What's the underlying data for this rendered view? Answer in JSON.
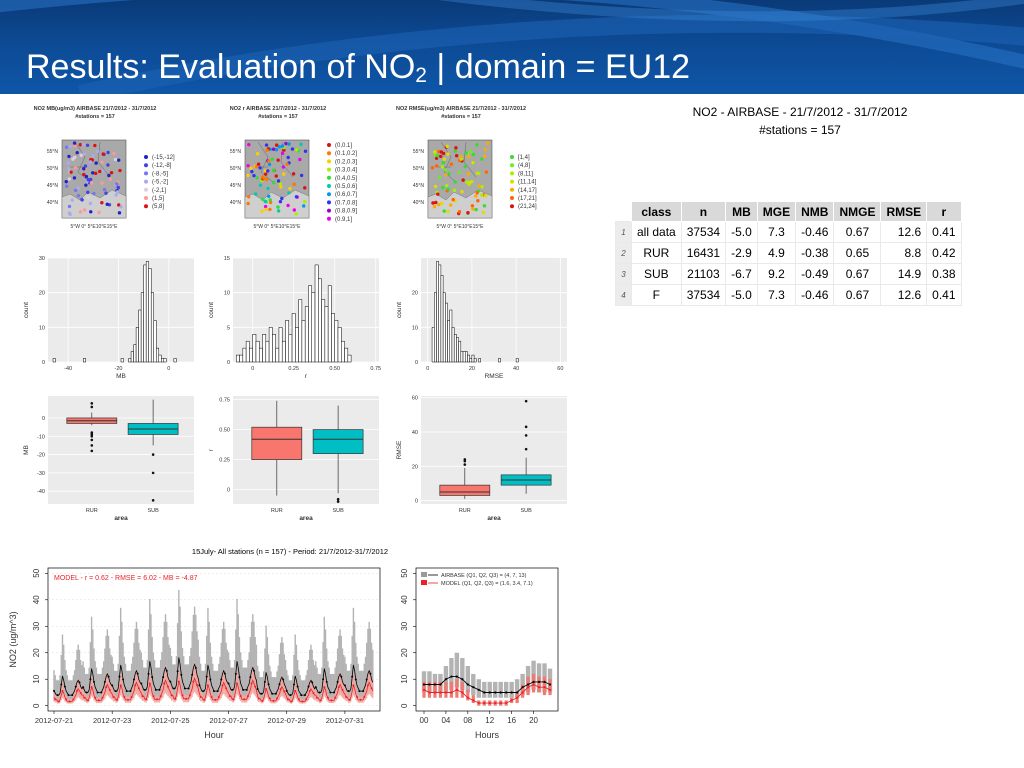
{
  "slide": {
    "title_prefix": "Results: Evaluation of NO",
    "title_sub": "2",
    "title_suffix": " | domain = EU12"
  },
  "maps": [
    {
      "title": "NO2 MB(ug/m3) AIRBASE 21/7/2012 - 31/7/2012",
      "subtitle": "#stations = 157",
      "legend": [
        {
          "label": "(-15,-12]",
          "color": "#2222cc"
        },
        {
          "label": "(-12,-8]",
          "color": "#4444dd"
        },
        {
          "label": "(-8,-5]",
          "color": "#7777ee"
        },
        {
          "label": "(-5,-2]",
          "color": "#aaaaee"
        },
        {
          "label": "(-2,1]",
          "color": "#ddd0dd"
        },
        {
          "label": "(1,5]",
          "color": "#ff9999"
        },
        {
          "label": "(5,8]",
          "color": "#dd1111"
        }
      ]
    },
    {
      "title": "NO2 r AIRBASE 21/7/2012 - 31/7/2012",
      "subtitle": "#stations = 157",
      "legend": [
        {
          "label": "(0,0.1]",
          "color": "#dd1111"
        },
        {
          "label": "(0.1,0.2]",
          "color": "#ff7700"
        },
        {
          "label": "(0.2,0.3]",
          "color": "#ffcc00"
        },
        {
          "label": "(0.3,0.4]",
          "color": "#aaee00"
        },
        {
          "label": "(0.4,0.5]",
          "color": "#33dd33"
        },
        {
          "label": "(0.5,0.6]",
          "color": "#00ccaa"
        },
        {
          "label": "(0.6,0.7]",
          "color": "#0099ee"
        },
        {
          "label": "(0.7,0.8]",
          "color": "#3333ee"
        },
        {
          "label": "(0.8,0.9]",
          "color": "#9900cc"
        },
        {
          "label": "(0.9,1]",
          "color": "#ee00ee"
        }
      ]
    },
    {
      "title": "NO2 RMSE(ug/m3) AIRBASE 21/7/2012 - 31/7/2012",
      "subtitle": "#stations = 157",
      "legend": [
        {
          "label": "[1,4]",
          "color": "#33dd33"
        },
        {
          "label": "(4,8]",
          "color": "#66ee22"
        },
        {
          "label": "(8,11]",
          "color": "#aaee00"
        },
        {
          "label": "(11,14]",
          "color": "#dddd00"
        },
        {
          "label": "(14,17]",
          "color": "#ffaa00"
        },
        {
          "label": "(17,21]",
          "color": "#ff6600"
        },
        {
          "label": "(21,24]",
          "color": "#dd1111"
        }
      ]
    }
  ],
  "map_ticks": {
    "lat": [
      "55°N",
      "50°N",
      "45°N",
      "40°N"
    ],
    "lon": "5°W 0° 5°E10°E15°E"
  },
  "table": {
    "caption_line1": "NO2 - AIRBASE - 21/7/2012 - 31/7/2012",
    "caption_line2": "#stations = 157",
    "headers": [
      "class",
      "n",
      "MB",
      "MGE",
      "NMB",
      "NMGE",
      "RMSE",
      "r"
    ],
    "rows": [
      {
        "idx": "1",
        "cells": [
          "all data",
          "37534",
          "-5.0",
          "7.3",
          "-0.46",
          "0.67",
          "12.6",
          "0.41"
        ]
      },
      {
        "idx": "2",
        "cells": [
          "RUR",
          "16431",
          "-2.9",
          "4.9",
          "-0.38",
          "0.65",
          "8.8",
          "0.42"
        ]
      },
      {
        "idx": "3",
        "cells": [
          "SUB",
          "21103",
          "-6.7",
          "9.2",
          "-0.49",
          "0.67",
          "14.9",
          "0.38"
        ]
      },
      {
        "idx": "4",
        "cells": [
          "F",
          "37534",
          "-5.0",
          "7.3",
          "-0.46",
          "0.67",
          "12.6",
          "0.41"
        ]
      }
    ]
  },
  "chart_data": [
    {
      "type": "bar",
      "name": "hist-mb",
      "xlabel": "MB",
      "ylabel": "count",
      "xlim": [
        -48,
        10
      ],
      "ylim": [
        0,
        30
      ],
      "xticks": [
        -40,
        -20,
        0
      ],
      "yticks": [
        0,
        10,
        20,
        30
      ],
      "bin_start": -46,
      "bin_width": 1,
      "counts": [
        1,
        0,
        0,
        0,
        0,
        0,
        0,
        0,
        0,
        0,
        0,
        0,
        1,
        0,
        0,
        0,
        0,
        0,
        0,
        0,
        0,
        0,
        0,
        0,
        0,
        0,
        0,
        1,
        0,
        0,
        1,
        3,
        5,
        10,
        15,
        20,
        28,
        29,
        27,
        20,
        12,
        4,
        2,
        1,
        1,
        0,
        0,
        0,
        1
      ]
    },
    {
      "type": "bar",
      "name": "hist-r",
      "xlabel": "r",
      "ylabel": "count",
      "xlim": [
        -0.12,
        0.77
      ],
      "ylim": [
        0,
        15
      ],
      "xticks": [
        0,
        0.25,
        0.5,
        0.75
      ],
      "yticks": [
        0,
        5,
        10,
        15
      ],
      "bin_start": -0.1,
      "bin_width": 0.02,
      "counts": [
        1,
        1,
        2,
        3,
        2,
        4,
        3,
        2,
        4,
        3,
        5,
        4,
        2,
        5,
        3,
        6,
        4,
        7,
        5,
        9,
        6,
        8,
        11,
        10,
        14,
        12,
        9,
        8,
        11,
        7,
        6,
        5,
        3,
        2,
        1
      ]
    },
    {
      "type": "bar",
      "name": "hist-rmse",
      "xlabel": "RMSE",
      "ylabel": "count",
      "xlim": [
        -3,
        63
      ],
      "ylim": [
        0,
        30
      ],
      "xticks": [
        0,
        20,
        40,
        60
      ],
      "yticks": [
        0,
        10,
        20
      ],
      "bin_start": 2,
      "bin_width": 1,
      "counts": [
        10,
        20,
        29,
        28,
        25,
        20,
        17,
        12,
        15,
        10,
        8,
        7,
        6,
        3,
        3,
        3,
        2,
        1,
        2,
        1,
        0,
        1,
        0,
        0,
        0,
        0,
        0,
        0,
        0,
        0,
        1,
        0,
        0,
        0,
        0,
        0,
        0,
        0,
        1
      ]
    },
    {
      "type": "box",
      "name": "box-mb",
      "xlabel": "area",
      "ylabel": "MB",
      "ylim": [
        -47,
        12
      ],
      "yticks": [
        0,
        -10,
        -20,
        -30,
        -40
      ],
      "categories": [
        "RUR",
        "SUB"
      ],
      "colors": [
        "#f8766d",
        "#00bfc4"
      ],
      "boxes": [
        {
          "q1": -3,
          "median": -1.5,
          "q3": 0,
          "lo": -4,
          "hi": 3,
          "outliers": [
            8,
            6,
            -8,
            -9,
            -10,
            -12,
            -15,
            -18
          ]
        },
        {
          "q1": -9,
          "median": -6,
          "q3": -3,
          "lo": -15,
          "hi": 10,
          "outliers": [
            -20,
            -30,
            -45
          ]
        }
      ]
    },
    {
      "type": "box",
      "name": "box-r",
      "xlabel": "area",
      "ylabel": "r",
      "ylim": [
        -0.12,
        0.78
      ],
      "yticks": [
        0,
        0.25,
        0.5,
        0.75
      ],
      "categories": [
        "RUR",
        "SUB"
      ],
      "colors": [
        "#f8766d",
        "#00bfc4"
      ],
      "boxes": [
        {
          "q1": 0.25,
          "median": 0.42,
          "q3": 0.52,
          "lo": -0.05,
          "hi": 0.74,
          "outliers": []
        },
        {
          "q1": 0.3,
          "median": 0.42,
          "q3": 0.5,
          "lo": -0.03,
          "hi": 0.7,
          "outliers": [
            -0.08,
            -0.1
          ]
        }
      ]
    },
    {
      "type": "box",
      "name": "box-rmse",
      "xlabel": "area",
      "ylabel": "RMSE",
      "ylim": [
        -2,
        61
      ],
      "yticks": [
        0,
        20,
        40,
        60
      ],
      "categories": [
        "RUR",
        "SUB"
      ],
      "colors": [
        "#f8766d",
        "#00bfc4"
      ],
      "boxes": [
        {
          "q1": 3,
          "median": 5,
          "q3": 9,
          "lo": 1,
          "hi": 19,
          "outliers": [
            21,
            23,
            24
          ]
        },
        {
          "q1": 9,
          "median": 12,
          "q3": 15,
          "lo": 4,
          "hi": 25,
          "outliers": [
            30,
            38,
            43,
            58
          ]
        }
      ]
    },
    {
      "type": "line",
      "name": "ts-hourly",
      "title": "15July- All stations (n = 157) - Period: 21/7/2012-31/7/2012",
      "xlabel": "Hour",
      "ylabel": "NO2 (ug/m^3)",
      "ylim": [
        -2,
        52
      ],
      "yticks": [
        0,
        10,
        20,
        30,
        40,
        50
      ],
      "xticks": [
        "2012-07-21",
        "2012-07-23",
        "2012-07-25",
        "2012-07-27",
        "2012-07-29",
        "2012-07-31"
      ],
      "annotation": "MODEL - r = 0.62 - RMSE = 6.02 - MB = -4.87",
      "day_profile_obs": [
        7,
        6,
        5,
        5,
        5,
        6,
        10,
        14,
        12,
        9,
        7,
        6,
        5,
        5,
        5,
        5,
        6,
        7,
        9,
        11,
        12,
        11,
        9,
        8
      ],
      "day_profile_model": [
        4,
        3,
        3,
        2,
        2,
        3,
        5,
        7,
        6,
        4,
        3,
        2,
        2,
        2,
        2,
        2,
        3,
        4,
        5,
        7,
        8,
        7,
        6,
        5
      ],
      "daily_scale": [
        0.8,
        1.0,
        1.1,
        1.2,
        1.3,
        1.1,
        1.2,
        0.9,
        0.8,
        1.0,
        1.1
      ]
    },
    {
      "type": "bar",
      "name": "diurnal",
      "xlabel": "Hours",
      "ylim": [
        -2,
        52
      ],
      "yticks": [
        0,
        10,
        20,
        30,
        40,
        50
      ],
      "xticks": [
        0,
        4,
        8,
        12,
        16,
        20
      ],
      "legend": [
        {
          "label": "AIRBASE (Q1, Q2, Q3)  = (4, 7, 13)",
          "color": "#9a9a9a"
        },
        {
          "label": "MODEL (Q1, Q2, Q3)  = (1.6, 3.4, 7.1)",
          "color": "#e8242a"
        }
      ],
      "obs_median": [
        8,
        8,
        8,
        8,
        10,
        11,
        11,
        10,
        8,
        7,
        6,
        5,
        5,
        5,
        5,
        5,
        5,
        5,
        7,
        8,
        9,
        9,
        9,
        8
      ],
      "obs_q1": [
        5,
        5,
        5,
        5,
        5,
        6,
        7,
        6,
        5,
        4,
        3,
        3,
        3,
        3,
        3,
        3,
        3,
        3,
        4,
        5,
        6,
        5,
        5,
        5
      ],
      "obs_q3": [
        13,
        13,
        12,
        12,
        15,
        18,
        20,
        18,
        15,
        12,
        10,
        9,
        9,
        9,
        9,
        9,
        9,
        10,
        12,
        15,
        17,
        16,
        16,
        14
      ],
      "mod_median": [
        6,
        5,
        5,
        5,
        5,
        5,
        6,
        5,
        3,
        2,
        1,
        1,
        1,
        1,
        1,
        1,
        2,
        3,
        5,
        7,
        8,
        7,
        7,
        6
      ],
      "mod_q1": [
        3,
        3,
        3,
        3,
        3,
        3,
        3,
        3,
        2,
        1,
        0,
        0,
        0,
        0,
        0,
        0,
        1,
        1,
        3,
        4,
        5,
        5,
        4,
        4
      ],
      "mod_q3": [
        9,
        9,
        9,
        9,
        9,
        9,
        10,
        9,
        6,
        4,
        2,
        2,
        2,
        2,
        2,
        2,
        3,
        5,
        8,
        11,
        12,
        11,
        11,
        10
      ]
    }
  ]
}
